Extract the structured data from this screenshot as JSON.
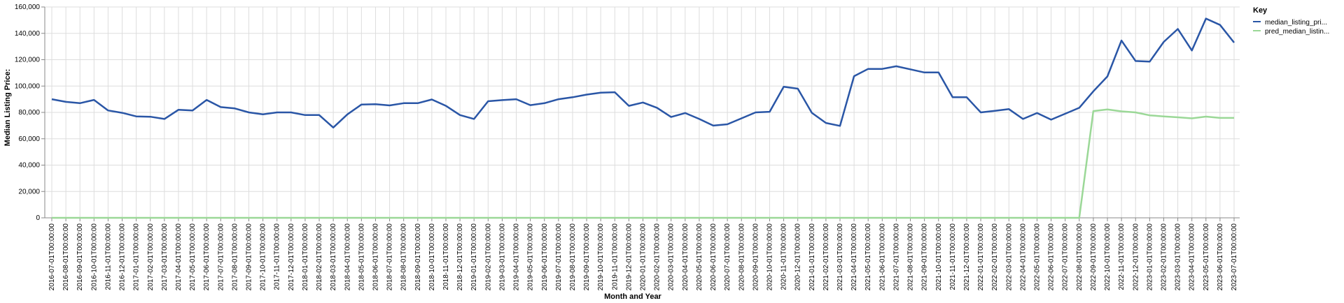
{
  "chart_data": {
    "type": "line",
    "xlabel": "Month and Year",
    "ylabel": "Median Listing Price:",
    "ylim": [
      0,
      160000
    ],
    "yticks": [
      "0",
      "20,000",
      "40,000",
      "60,000",
      "80,000",
      "100,000",
      "120,000",
      "140,000",
      "160,000"
    ],
    "grid": true,
    "legend": {
      "title": "Key",
      "position": "top-right",
      "entries": [
        "median_listing_pri...",
        "pred_median_listin..."
      ]
    },
    "x": [
      "2016-07-01T00:00:00",
      "2016-08-01T00:00:00",
      "2016-09-01T00:00:00",
      "2016-10-01T00:00:00",
      "2016-11-01T00:00:00",
      "2016-12-01T00:00:00",
      "2017-01-01T00:00:00",
      "2017-02-01T00:00:00",
      "2017-03-01T00:00:00",
      "2017-04-01T00:00:00",
      "2017-05-01T00:00:00",
      "2017-06-01T00:00:00",
      "2017-07-01T00:00:00",
      "2017-08-01T00:00:00",
      "2017-09-01T00:00:00",
      "2017-10-01T00:00:00",
      "2017-11-01T00:00:00",
      "2017-12-01T00:00:00",
      "2018-01-01T00:00:00",
      "2018-02-01T00:00:00",
      "2018-03-01T00:00:00",
      "2018-04-01T00:00:00",
      "2018-05-01T00:00:00",
      "2018-06-01T00:00:00",
      "2018-07-01T00:00:00",
      "2018-08-01T00:00:00",
      "2018-09-01T00:00:00",
      "2018-10-01T00:00:00",
      "2018-11-01T00:00:00",
      "2018-12-01T00:00:00",
      "2019-01-01T00:00:00",
      "2019-02-01T00:00:00",
      "2019-03-01T00:00:00",
      "2019-04-01T00:00:00",
      "2019-05-01T00:00:00",
      "2019-06-01T00:00:00",
      "2019-07-01T00:00:00",
      "2019-08-01T00:00:00",
      "2019-09-01T00:00:00",
      "2019-10-01T00:00:00",
      "2019-11-01T00:00:00",
      "2019-12-01T00:00:00",
      "2020-01-01T00:00:00",
      "2020-02-01T00:00:00",
      "2020-03-01T00:00:00",
      "2020-04-01T00:00:00",
      "2020-05-01T00:00:00",
      "2020-06-01T00:00:00",
      "2020-07-01T00:00:00",
      "2020-08-01T00:00:00",
      "2020-09-01T00:00:00",
      "2020-10-01T00:00:00",
      "2020-11-01T00:00:00",
      "2020-12-01T00:00:00",
      "2021-01-01T00:00:00",
      "2021-02-01T00:00:00",
      "2021-03-01T00:00:00",
      "2021-04-01T00:00:00",
      "2021-05-01T00:00:00",
      "2021-06-01T00:00:00",
      "2021-07-01T00:00:00",
      "2021-08-01T00:00:00",
      "2021-09-01T00:00:00",
      "2021-10-01T00:00:00",
      "2021-11-01T00:00:00",
      "2021-12-01T00:00:00",
      "2022-01-01T00:00:00",
      "2022-02-01T00:00:00",
      "2022-03-01T00:00:00",
      "2022-04-01T00:00:00",
      "2022-05-01T00:00:00",
      "2022-06-01T00:00:00",
      "2022-07-01T00:00:00",
      "2022-08-01T00:00:00",
      "2022-09-01T00:00:00",
      "2022-10-01T00:00:00",
      "2022-11-01T00:00:00",
      "2022-12-01T00:00:00",
      "2023-01-01T00:00:00",
      "2023-02-01T00:00:00",
      "2023-03-01T00:00:00",
      "2023-04-01T00:00:00",
      "2023-05-01T00:00:00",
      "2023-06-01T00:00:00",
      "2023-07-01T00:00:00"
    ],
    "series": [
      {
        "name": "median_listing_pri...",
        "color": "#2a56a6",
        "values": [
          90000,
          88000,
          87000,
          89500,
          81500,
          79700,
          77000,
          76700,
          75000,
          82000,
          81500,
          89500,
          84000,
          83000,
          80000,
          78500,
          80000,
          80000,
          78000,
          78000,
          68500,
          78500,
          86000,
          86200,
          85300,
          87000,
          87000,
          89800,
          85000,
          78000,
          75000,
          88500,
          89300,
          90000,
          85500,
          87000,
          90000,
          91500,
          93500,
          95000,
          95300,
          85000,
          87500,
          83500,
          76500,
          79500,
          75000,
          70000,
          71000,
          75500,
          80000,
          80500,
          99500,
          98000,
          79700,
          72000,
          69800,
          107500,
          113000,
          113000,
          115000,
          112700,
          110300,
          110300,
          91500,
          91500,
          80000,
          81200,
          82500,
          75000,
          79500,
          74500,
          79000,
          83500,
          96000,
          107300,
          134500,
          119000,
          118500,
          133500,
          143300,
          127000,
          151200,
          146400,
          133000
        ]
      },
      {
        "name": "pred_median_listin...",
        "color": "#9bd897",
        "values": [
          0,
          0,
          0,
          0,
          0,
          0,
          0,
          0,
          0,
          0,
          0,
          0,
          0,
          0,
          0,
          0,
          0,
          0,
          0,
          0,
          0,
          0,
          0,
          0,
          0,
          0,
          0,
          0,
          0,
          0,
          0,
          0,
          0,
          0,
          0,
          0,
          0,
          0,
          0,
          0,
          0,
          0,
          0,
          0,
          0,
          0,
          0,
          0,
          0,
          0,
          0,
          0,
          0,
          0,
          0,
          0,
          0,
          0,
          0,
          0,
          0,
          0,
          0,
          0,
          0,
          0,
          0,
          0,
          0,
          0,
          0,
          0,
          0,
          0,
          81000,
          82200,
          80800,
          80000,
          77800,
          77000,
          76300,
          75500,
          76800,
          75800,
          75800
        ]
      }
    ]
  }
}
